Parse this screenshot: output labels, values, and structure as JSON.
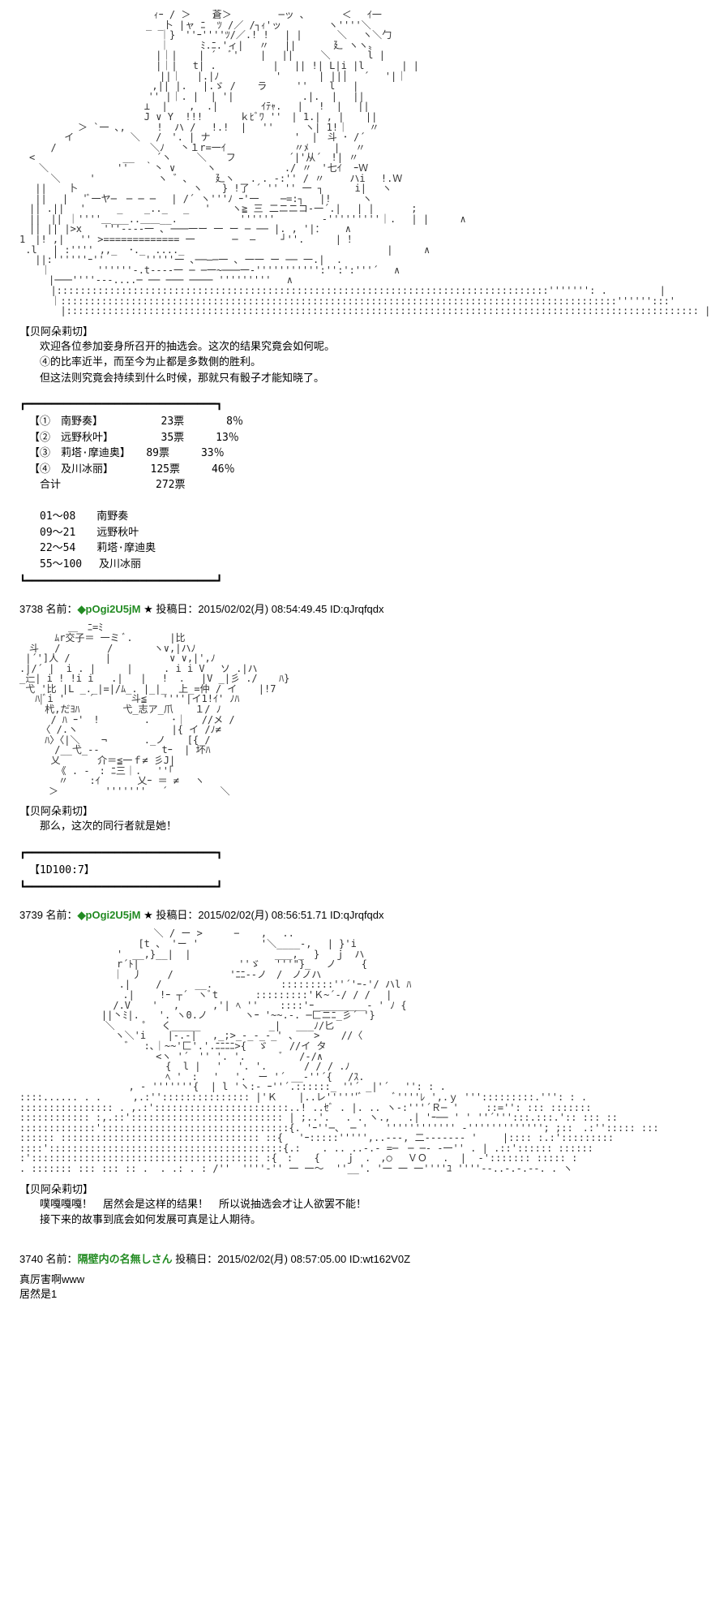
{
  "colors": {
    "background": "#ffffff",
    "text": "#000000",
    "name": "#228b22",
    "aa_art": "#333333"
  },
  "fonts": {
    "body": "MS PGothic, Meiryo, sans-serif",
    "aa": "MS PGothic, Mona, monospace",
    "body_size": 13,
    "aa_size": 12
  },
  "art1_character": "【贝阿朵莉切】",
  "art1_lines": {
    "l1": "　欢迎各位参加妾身所召开的抽选会。这次的结果究竟会如何呢。",
    "l2": "　④的比率近半，而至今为止都是多数側的胜利。",
    "l3": "　但这法则究竟会持续到什么时候，那就只有骰子才能知晓了。"
  },
  "box_border_top": "┏━━━━━━━━━━━━━━━━━━━━━━━━━━━━━━┓",
  "box_border_bot": "┗━━━━━━━━━━━━━━━━━━━━━━━━━━━━━━┛",
  "vote_table": {
    "r1": "【①　南野奏】　　　　　　23票　　　　8％",
    "r2": "【②　远野秋叶】　　　　　35票　　　13％",
    "r3": "【③　莉塔·摩迪奥】　　89票　　　33％",
    "r4": "【④　及川冰丽】　　　　125票　　　46％",
    "r5": "　合计　　　　　　　　　272票",
    "blank": "　",
    "r6": "　01～08　　南野奏",
    "r7": "　09～21　　远野秋叶",
    "r8": "　22～54　　莉塔·摩迪奥",
    "r9": "　55～100　 及川冰丽"
  },
  "post_3738": {
    "num": "3738",
    "name_label": "名前：",
    "name": "◆pOgi2U5jM",
    "star": "★",
    "date_label": "投稿日：",
    "date": "2015/02/02(月) 08:54:49.45",
    "id_label": "ID:",
    "id": "qJrqfqdx"
  },
  "art2_character": "【贝阿朵莉切】",
  "art2_line": "　那么，这次的同行者就是她！",
  "dice_box": "【1D100:7】",
  "post_3739": {
    "num": "3739",
    "name_label": "名前：",
    "name": "◆pOgi2U5jM",
    "star": "★",
    "date_label": "投稿日：",
    "date": "2015/02/02(月) 08:56:51.71",
    "id_label": "ID:",
    "id": "qJrqfqdx"
  },
  "art3_character": "【贝阿朵莉切】",
  "art3_lines": {
    "l1": "　噗嘎嘎嘎！　居然会是这样的结果！　所以说抽选会才让人欲罢不能！",
    "l2": "　接下来的故事到底会如何发展可真是让人期待。"
  },
  "post_3740": {
    "num": "3740",
    "name_label": "名前：",
    "name": "隔壁内の名無しさん",
    "date_label": "投稿日：",
    "date": "2015/02/02(月) 08:57:05.00",
    "id_label": "ID:",
    "id": "wt162V0Z",
    "body1": "真厉害啊www",
    "body2": "居然是1"
  },
  "aa_art_1": "　　　　　　　　　　 　 　 ｨｰ / ＞ 　 蒼＞ 　　 　 ─ッ ､ 　 　 ＜　 ｲ一\n　　　　　　　　　　　　　_ _卜 |ャ ﾆ  ﾂ /／ /┐ｨ'ッ　 　 　 ヽ''''＼\n　 　 　 　 　 　 　 　 　 ｜}　''ｰ''''ﾂ/／.! !　 | |　　 　＼　 ヽ＼勹\n　 　 　 　 　 　 　 　 　 ｜ 　 　ﾐ.ﾆ.'ィ|　 〃　 || 　 　 廴 ヽヽ〟\n　　　　　　　 　 　 　 　 |｜| 　 | ´　 ﾞ' 　 |　 ||  　 ＼　 　  l |\n　　　　　　　 　 　 　 　 |｜|　 t| .　　 　 　 |　 || !| L|i |l 　 　 | |\n　 　 　 　 　 　 　 　 　 ||｜　 |.|ﾉ　　 　 　 ' 　 　 | ||│　 ´　 '|｜\n　　　　　 　 　 　 　 　 ,|| |. 　|.ゞ / 　 ラ　　　'' 　 l   |　\n　　　 　 　 　 　 　 　 '' |｜. |  | '| 　 　 　 　 .|.  |　 ||\n　 　 　 　 　 　 　 　 ⊥  | 　 ,  .| 　 　  ｲﾃｬ.　 | 　!  |　 ||\n　 　 　 　 　 　 　 　 J ∨ Y  !!! 　 　 ｋﾋﾞﾜ ''　| 1.| , | 　 ||\n　　　　　　＞ `一 ､,　 　 !  ハ / 　!.!  | 　''　 　 ヽ| 1!｜ 　 〃\n　　　　 イ　 　 　 　＼ 　/　'. | ナ  　 　 　 　 　'  |　斗 ･ /´\n　 　 /　 　 　 　 　 　 ＼ﾉ　 丶１r=一ｲ 　 　 　 　 〃ﾒ　　 |　 〃\n　<　 　 　 　 　 　__ 　 ´ヽ　　 ＼　　フ 　 　 　 ´|'从´　!| 〃\n　　＼ 　 　 　 　 ''　 ｀丶 ∨ 　　 ヽ 　 　 　 　 ./ 〃　'七ｲ  ｰＷ\n　 　 ＼　　　'　 　 　 　 ヽ ゛､ 　  廴ヽ 　. . -:'' / 〃　　 ハi　 !.Ｗ\n　 ||  　卜 　 　 　 　 　 　 　 ヽ　　} !了 ´ '' '' 一 ┐　 　 i|　 ヽ\n　 ||　 |　 'ﾞ一ヤ─　─ ─ ─ 　| /´ ヽ'''ﾉ ｰ'一 　 ─=:┐　 |!　 　 ヽ\n　|| .||　 '　 　 _ 　 _.._　 _　 ' 　 ヽ≧ 三 二ニニコ-一´.| 　| | 　 　 ;\n　||　|| ｜''''＿___..＿＿__.　 　 　 　 ''''''　 　 　 ‐'''''''''｜. 　| |　 　 ∧\n　|| || |>x 　 '''----一 ､ ───一ー 一 ー ─ ── |. , '|：　 　∧\n1　|! ,|　 '' >============= 一 　 　 ─  ―　　 ┘''.　  　| ！\n .l　 | :'''' ,,_  ･._　...._　 　 　 　 　 　 　 　 　 　 　 　 　 |　 　 ∧\n　 ||:''''''ｰ''　 　 　'''''一 ､──―─一 ､ 一一 ー ── 一.|  .\n 　 ｜　 　 　 ''''''-.t----一 ─ ─一~───一-''''''''''':'':':'''´ 　∧\n　　　|───''''---....─ ── ─── ──── ''''''''' 　∧\n　 　 |::::::::::::::::::::::::::::::::::::::::::::::::::::::::::::::::::::::::::::::::::::''''''': . 　 　 　 |  \n　 　 ｜:::::::::::::::::::::::::::::::::::::::::::::::::::::::::::::::::::::::::::::::::::::::::::::::'''''':::'\n　 　 　|:::::::::::::::::::::::::::::::::::::::::::::::::::::::::::::::::::::::::::::::::::::::::::::::::::::::::::: |",
  "aa_art_2": "　　　　　＿　ﾆ=ﾐ\n　　　 ﾑr交子＝ 一ミ ﾞ. 　 　 |比\n　斗 　/ 　　 　 /　　 　 ヽ∨,|ハﾉ\n |´']人 /　　 　| 　 　 　  ∨ ∨,|',ﾉ\n.|/´ |  i . |　 　 |　 　 . i i V　 ソ .|ハ\n_辷| i ! !i i   .|   | 　!  ．  |V _|彡 ./　  ﾊ}\n 弋 '比 |L _._|=|/ﾑ_. |_|_  上_=仲 / イ 　 |!7\n 　ﾊ|ﾞi '    ´ 　 　 斗≦ 　''''|イ1!ｲ' ﾉﾊ\n　 　杙,だﾖﾊ  　 　 弋_志ア_爪 　 １/ ﾉ\n　 　 / ﾊ ｰ'　!　　　　 . 　 ･｜　 //メ /\n 　 〈 /.ヽ 　 　 　 　 　 　|{ イ /ﾉ≠\n　 　ﾊ〉〈|＼ 　 ¬ 　 　 ._ノ　  [{ /\n　　 　/__弋_‐- 　 　 　 　tｰ  | 坏ﾊ\n　 　 乂 　 　 介＝≦一ｆ≠ 彡J|\n 　 　 《 . -　: ﾆ三｜. 　''｢\n　　　　〃 　 :ｲ 　 　 乂ｰ ＝ ≠ 　ヽ\n　　　＞ 　 　 　'''''''　 ´ 　 　 　 ＼",
  "aa_art_3": "　　　　　　　　　　 　 　 ＼ / ー >　 　 − 　 ,　 ..\n　　　　　　　　　　 　 [t 、 'ー ' 　 　 　 　'＼____-,　 | }'i\n　　　　　　　　　　'　__,}__|  | 　 　 　 　 　 ___,_　}　 ｊ　ハ\n　　　　　　　　　　r´ﾄ| 　 　 　 　 　 　 ''ゞ　 '''\"}_　 ノ　 　{\n　　　　　　　　　 ｜　丿　　 /　 　 　 　'ﾆﾆ--ノ　/　ノノハ\n 　 　 　 　 　 　 .|　　 /   　 __. 　 　 　 　 :::::::::''´'ｰ-'/ ハl ﾊ\n　 　 　 　 　 　 　.|　　 !ｰ ┬´　ヽﾞt 　 　 :::::::::'Ｋ~´-/ / / 　|\n　 　 　 　 　 　 /.V 　 '　 ,  　  ,'| ﾍ ''  　::::'ｰ ________- ' ﾉ {\n　 　 　 　 　　||丶ﾐ|.　　'. ヽ0.ノ 　 　 ヽｰ '~~.-. ─匚ニﾆ_彡´ '}\n　　　　　 　 　 ＼ 　  ゜　く_____ 　 　 　 　 _|　 ___ﾉ/匕\n　　　　　　 　 　 ヽ＼'i 　 |-.-|　 ,_;>_-_-_-_' 、 　> 　 //〈\n　　　　　　　 　 　 ゛　:､｜~~'匚'.'.ﾆﾆﾆﾆ>{  ゞ 　 //イ タ\n　　　　　　　 　 　 　 　 <ヽ '´　'' '. '. 　 　 ﾞ　 /-/∧\n　　　　　　　　　 　 　 　  {  l | 　'　 '. '. 　 　 / / / .ﾉ\n　　　　　　　　 　 　 　 　 ﾍ '　: 　'　 '.  ー '´ __-''´{　 /ｽ.\n　 　 　 　 　 　 　 , ‐ '''''''{  | l 'ヽ:- ｰ''´.::::::_ ''´ _|'´　 '': : .\n::::...... . . 　 　,.:''::::::::::::::: |'Ｋ　  |..レ''''''ﾞ　　　ﾞ''''ﾚ ',.ｙ ''':::::::::.''': : .\n:::::::::::::::: . ,.:':::::::::::::::::::::::..! ..ｾﾞ . |. .. ヽ-:'''´Ｒ─ ' 　  ::='': ::: :::::::\n:::::::::::: :,.::':::::::::::::::::::::::::: | ;..'.　 . . ヽ.,   .| 'ｰ── ' ' ''´''':::.:::.':: ::: ::\n:::::::::::::'::::::::::::::::::::::::::::::::{. 'ｰ''─、 ─ '   '''''''''''' -'''''''''''''; ;::　.:''::::: :::\n:::::: :::::::::::::::::::::::::::::::::: ::{　 'ｰ:::::''''',..---, 二------- '　　 |:::: :.:':::::::::\n::::'::::::::::::::::::::::::::::::::::::::::{.: 　 . .. ..-.- =─　─ ─- -一'' . | .::':::::: ::::::\n:'::::::::::::::::::::::::::::::::::::::: :{　:　  {　 　ｊ　.　,○　 ＶＯ　 .  |  -'::::::: ::::: :\n. ::::::: ::: ::: :: .  . .: . : /''  ''''-'' 一 一～  ''__'. '一 一 一''''ﾕ ''''--..-.-.--. . ヽ"
}
